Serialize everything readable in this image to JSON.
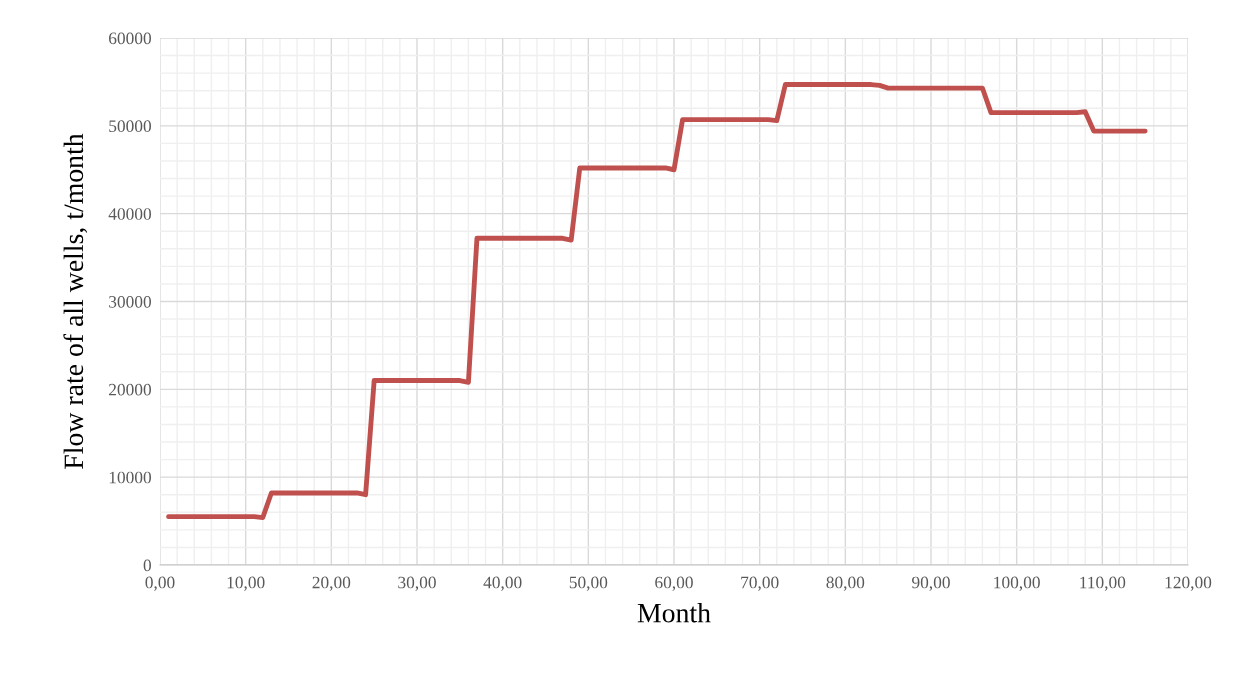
{
  "chart_data": {
    "type": "line",
    "xlabel": "Month",
    "ylabel": "Flow rate of all wells, t/month",
    "x": [
      1,
      11,
      12,
      13,
      23,
      24,
      25,
      35,
      36,
      37,
      47,
      48,
      49,
      59,
      60,
      61,
      71,
      72,
      73,
      83,
      84,
      85,
      95,
      96,
      97,
      107,
      108,
      109,
      115
    ],
    "series": [
      {
        "color": "#c0504d",
        "values": [
          5500,
          5500,
          5400,
          8200,
          8200,
          8000,
          21000,
          21000,
          20800,
          37200,
          37200,
          37000,
          45200,
          45200,
          45000,
          50700,
          50700,
          50600,
          54700,
          54700,
          54600,
          54300,
          54300,
          54300,
          51500,
          51500,
          51600,
          49400,
          49400
        ]
      }
    ],
    "xlim": [
      0,
      120
    ],
    "ylim": [
      0,
      60000
    ],
    "xticks": [
      {
        "value": 0,
        "label": "0,00"
      },
      {
        "value": 10,
        "label": "10,00"
      },
      {
        "value": 20,
        "label": "20,00"
      },
      {
        "value": 30,
        "label": "30,00"
      },
      {
        "value": 40,
        "label": "40,00"
      },
      {
        "value": 50,
        "label": "50,00"
      },
      {
        "value": 60,
        "label": "60,00"
      },
      {
        "value": 70,
        "label": "70,00"
      },
      {
        "value": 80,
        "label": "80,00"
      },
      {
        "value": 90,
        "label": "90,00"
      },
      {
        "value": 100,
        "label": "100,00"
      },
      {
        "value": 110,
        "label": "110,00"
      },
      {
        "value": 120,
        "label": "120,00"
      }
    ],
    "yticks": [
      0,
      10000,
      20000,
      30000,
      40000,
      50000,
      60000
    ],
    "grid": true,
    "marker": "none",
    "line_style": "solid",
    "legend": false
  }
}
